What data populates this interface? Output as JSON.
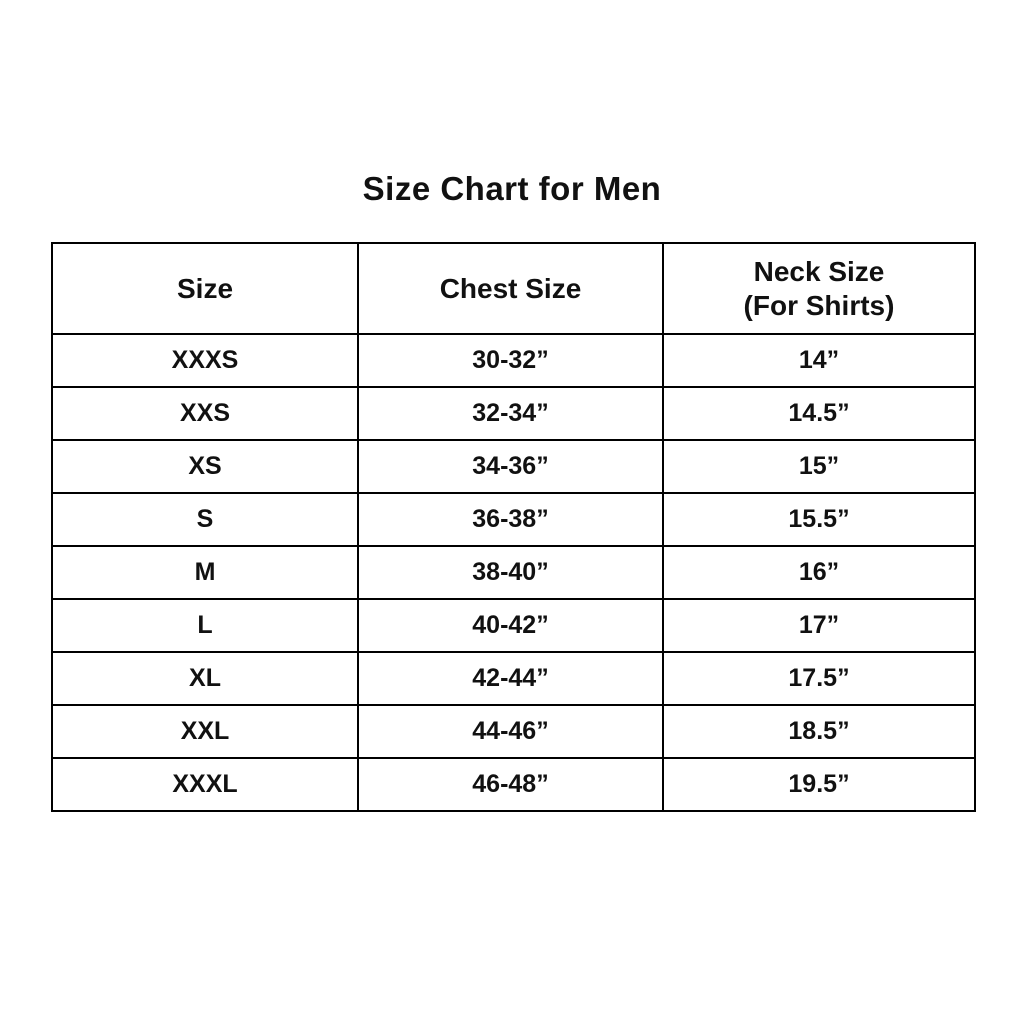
{
  "page": {
    "title": "Size Chart for Men"
  },
  "table": {
    "headers": [
      {
        "label": "Size",
        "sublabel": ""
      },
      {
        "label": "Chest Size",
        "sublabel": ""
      },
      {
        "label": "Neck Size",
        "sublabel": "(For Shirts)"
      }
    ],
    "rows": [
      {
        "size": "XXXS",
        "chest": "30-32”",
        "neck": "14”"
      },
      {
        "size": "XXS",
        "chest": "32-34”",
        "neck": "14.5”"
      },
      {
        "size": "XS",
        "chest": "34-36”",
        "neck": "15”"
      },
      {
        "size": "S",
        "chest": "36-38”",
        "neck": "15.5”"
      },
      {
        "size": "M",
        "chest": "38-40”",
        "neck": "16”"
      },
      {
        "size": "L",
        "chest": "40-42”",
        "neck": "17”"
      },
      {
        "size": "XL",
        "chest": "42-44”",
        "neck": "17.5”"
      },
      {
        "size": "XXL",
        "chest": "44-46”",
        "neck": "18.5”"
      },
      {
        "size": "XXXL",
        "chest": "46-48”",
        "neck": "19.5”"
      }
    ]
  },
  "chart_data": {
    "type": "table",
    "title": "Size Chart for Men",
    "columns": [
      "Size",
      "Chest Size",
      "Neck Size (For Shirts)"
    ],
    "rows": [
      [
        "XXXS",
        "30-32”",
        "14”"
      ],
      [
        "XXS",
        "32-34”",
        "14.5”"
      ],
      [
        "XS",
        "34-36”",
        "15”"
      ],
      [
        "S",
        "36-38”",
        "15.5”"
      ],
      [
        "M",
        "38-40”",
        "16”"
      ],
      [
        "L",
        "40-42”",
        "17”"
      ],
      [
        "XL",
        "42-44”",
        "17.5”"
      ],
      [
        "XXL",
        "44-46”",
        "18.5”"
      ],
      [
        "XXXL",
        "46-48”",
        "19.5”"
      ]
    ]
  }
}
